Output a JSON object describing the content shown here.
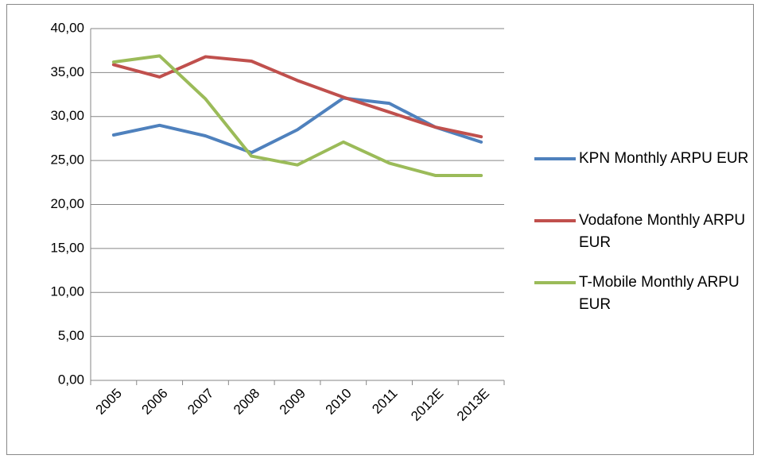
{
  "chart_data": {
    "type": "line",
    "categories": [
      "2005",
      "2006",
      "2007",
      "2008",
      "2009",
      "2010",
      "2011",
      "2012E",
      "2013E"
    ],
    "series": [
      {
        "name": "KPN Monthly ARPU EUR",
        "color": "#4f81bd",
        "values": [
          27.9,
          29.0,
          27.8,
          25.9,
          28.5,
          32.1,
          31.5,
          28.8,
          27.1
        ]
      },
      {
        "name": "Vodafone Monthly ARPU EUR",
        "color": "#c0504d",
        "values": [
          35.9,
          34.5,
          36.8,
          36.3,
          34.1,
          32.2,
          30.5,
          28.8,
          27.7
        ]
      },
      {
        "name": "T-Mobile Monthly ARPU EUR",
        "color": "#9bbb59",
        "values": [
          36.2,
          36.9,
          32.0,
          25.5,
          24.5,
          27.1,
          24.7,
          23.3,
          23.3
        ]
      }
    ],
    "ylim": [
      0,
      40
    ],
    "yticks": [
      {
        "value": 0,
        "label": "0,00"
      },
      {
        "value": 5,
        "label": "5,00"
      },
      {
        "value": 10,
        "label": "10,00"
      },
      {
        "value": 15,
        "label": "15,00"
      },
      {
        "value": 20,
        "label": "20,00"
      },
      {
        "value": 25,
        "label": "25,00"
      },
      {
        "value": 30,
        "label": "30,00"
      },
      {
        "value": 35,
        "label": "35,00"
      },
      {
        "value": 40,
        "label": "40,00"
      }
    ],
    "grid": true,
    "legend": "right"
  }
}
